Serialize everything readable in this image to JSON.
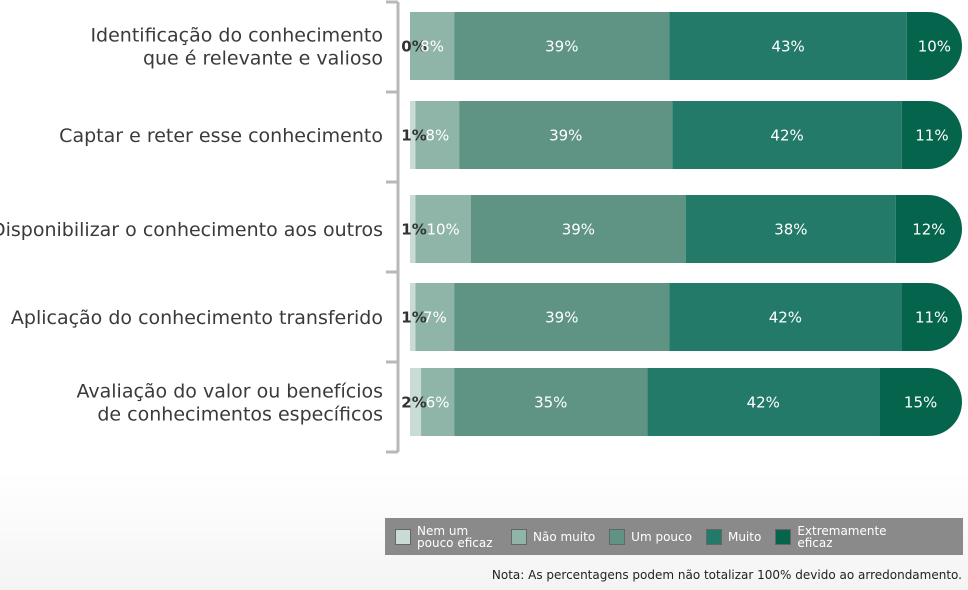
{
  "chart_data": {
    "type": "bar",
    "orientation": "horizontal",
    "stacked": true,
    "categories": [
      [
        "Identificação do conhecimento",
        "que é relevante e valioso"
      ],
      [
        "Captar e reter esse conhecimento"
      ],
      [
        "Disponibilizar o conhecimento aos outros"
      ],
      [
        "Aplicação do conhecimento transferido"
      ],
      [
        "Avaliação do valor ou benefícios",
        "de conhecimentos específicos"
      ]
    ],
    "series": [
      {
        "name": "Nem um pouco eficaz",
        "color": "#c8dcd5",
        "values": [
          0,
          1,
          1,
          1,
          2
        ]
      },
      {
        "name": "Não muito",
        "color": "#8fb5a9",
        "values": [
          8,
          8,
          10,
          7,
          6
        ]
      },
      {
        "name": "Um pouco",
        "color": "#5f9485",
        "values": [
          39,
          39,
          39,
          39,
          35
        ]
      },
      {
        "name": "Muito",
        "color": "#237a68",
        "values": [
          43,
          42,
          38,
          42,
          42
        ]
      },
      {
        "name": "Extremamente eficaz",
        "color": "#04644c",
        "values": [
          10,
          11,
          12,
          11,
          15
        ]
      }
    ],
    "value_suffix": "%",
    "legend_position": "bottom",
    "grid": false
  },
  "legend": {
    "items": [
      {
        "label": "Nem um pouco eficaz",
        "color": "#c8dcd5"
      },
      {
        "label": "Não muito",
        "color": "#8fb5a9"
      },
      {
        "label": "Um pouco",
        "color": "#5f9485"
      },
      {
        "label": "Muito",
        "color": "#237a68"
      },
      {
        "label": "Extremamente eficaz",
        "color": "#04644c"
      }
    ]
  },
  "note": "Nota: As percentagens podem não totalizar 100% devido ao arredondamento."
}
